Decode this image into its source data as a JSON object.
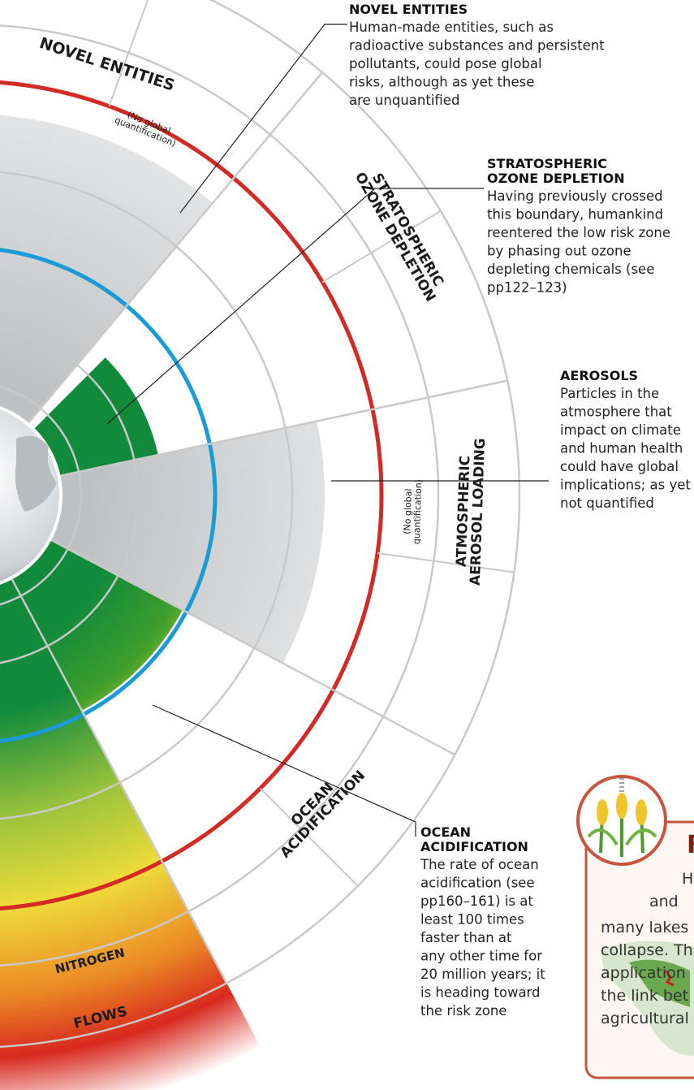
{
  "segments": [
    {
      "label": [
        "NOVEL ENTITIES"
      ],
      "note": [
        "(No global",
        "quantification)"
      ]
    },
    {
      "label": [
        "STRATOSPHERIC",
        "OZONE DEPLETION"
      ]
    },
    {
      "label": [
        "ATMOSPHERIC",
        "AEROSOL LOADING"
      ],
      "note": [
        "(No global",
        "quantification)"
      ]
    },
    {
      "label": [
        "OCEAN",
        "ACIDIFICATION"
      ]
    },
    {
      "label": [
        "NITROGEN"
      ]
    },
    {
      "label": [
        "FLOWS"
      ]
    }
  ],
  "callouts": [
    {
      "title": [
        "NOVEL ENTITIES"
      ],
      "text": [
        "Human-made entities, such as",
        "radioactive substances and persistent",
        "pollutants, could pose global",
        "risks, although as yet these",
        "are unquantified"
      ]
    },
    {
      "title": [
        "STRATOSPHERIC",
        "OZONE DEPLETION"
      ],
      "text": [
        "Having previously crossed",
        "this boundary, humankind",
        "reentered the low risk zone",
        "by phasing out ozone",
        "depleting chemicals (see",
        "pp122–123)"
      ]
    },
    {
      "title": [
        "AEROSOLS"
      ],
      "text": [
        "Particles in the",
        "atmosphere that",
        "impact on climate",
        "and human health",
        "could have global",
        "implications; as yet",
        "not quantified"
      ]
    },
    {
      "title": [
        "OCEAN",
        "ACIDIFICATION"
      ],
      "text": [
        "The rate of ocean",
        "acidification (see",
        "pp160–161) is at",
        "least 100 times",
        "faster than at",
        "any other time for",
        "20 million years; it",
        "is heading toward",
        "the risk zone"
      ]
    }
  ],
  "sidebar": {
    "title": "F",
    "text": [
      "H",
      "and",
      "many lakes",
      "collapse. Th",
      "application",
      "the link bet",
      "agricultural"
    ]
  }
}
